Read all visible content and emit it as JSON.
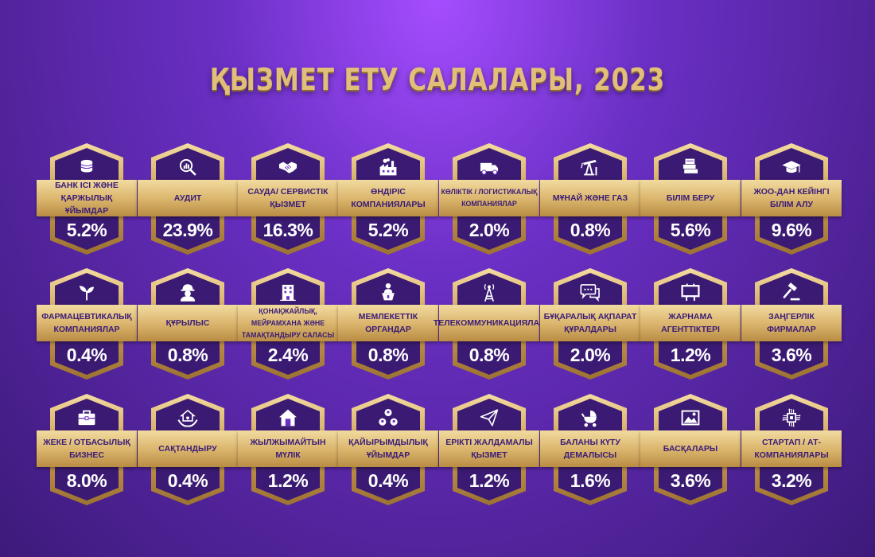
{
  "title": "ҚЫЗМЕТ ЕТУ САЛАЛАРЫ, 2023",
  "cards": [
    {
      "label": "БАНК ІСІ ЖӘНЕ ҚАРЖЫЛЫҚ ҰЙЫМДАР",
      "value": "5.2%",
      "icon": "coins-icon"
    },
    {
      "label": "АУДИТ",
      "value": "23.9%",
      "icon": "magnifier-chart-icon"
    },
    {
      "label": "САУДА/ СЕРВИСТІК ҚЫЗМЕТ",
      "value": "16.3%",
      "icon": "handshake-icon"
    },
    {
      "label": "ӨНДІРІС КОМПАНИЯЛАРЫ",
      "value": "5.2%",
      "icon": "factory-icon"
    },
    {
      "label": "КӨЛІКТІК / ЛОГИСТИКАЛЫҚ КОМПАНИЯЛАР",
      "value": "2.0%",
      "icon": "truck-icon"
    },
    {
      "label": "МҰНАЙ ЖӘНЕ ГАЗ",
      "value": "0.8%",
      "icon": "oil-pump-icon"
    },
    {
      "label": "БІЛІМ БЕРУ",
      "value": "5.6%",
      "icon": "books-icon"
    },
    {
      "label": "ЖОО-ДАН КЕЙІНГІ БІЛІМ АЛУ",
      "value": "9.6%",
      "icon": "graduation-cap-icon"
    },
    {
      "label": "ФАРМАЦЕВТИКАЛЫҚ КОМПАНИЯЛАР",
      "value": "0.4%",
      "icon": "sprout-icon"
    },
    {
      "label": "ҚҰРЫЛЫС",
      "value": "0.8%",
      "icon": "builder-icon"
    },
    {
      "label": "ҚОНАҚЖАЙЛЫҚ, МЕЙРАМХАНА ЖӘНЕ ТАМАҚТАНДЫРУ САЛАСЫ",
      "value": "2.4%",
      "icon": "hotel-icon"
    },
    {
      "label": "МЕМЛЕКЕТТІК ОРГАНДАР",
      "value": "0.8%",
      "icon": "speaker-podium-icon"
    },
    {
      "label": "ТЕЛЕКОММУНИКАЦИЯЛАР",
      "value": "0.8%",
      "icon": "antenna-tower-icon"
    },
    {
      "label": "БҰҚАРАЛЫҚ АҚПАРАТ ҚҰРАЛДАРЫ",
      "value": "2.0%",
      "icon": "chat-bubbles-icon"
    },
    {
      "label": "ЖАРНАМА АГЕНТТІКТЕРІ",
      "value": "1.2%",
      "icon": "billboard-icon"
    },
    {
      "label": "ЗАҢГЕРЛІК ФИРМАЛАР",
      "value": "3.6%",
      "icon": "gavel-icon"
    },
    {
      "label": "ЖЕКЕ / ОТБАСЫЛЫҚ БИЗНЕС",
      "value": "8.0%",
      "icon": "briefcase-icon"
    },
    {
      "label": "САҚТАНДЫРУ",
      "value": "0.4%",
      "icon": "hands-house-icon"
    },
    {
      "label": "ЖЫЛЖЫМАЙТЫН МҮЛІК",
      "value": "1.2%",
      "icon": "house-icon"
    },
    {
      "label": "ҚАЙЫРЫМДЫЛЫҚ ҰЙЫМДАР",
      "value": "0.4%",
      "icon": "people-network-icon"
    },
    {
      "label": "ЕРІКТІ ЖАЛДАМАЛЫ ҚЫЗМЕТ",
      "value": "1.2%",
      "icon": "paper-plane-icon"
    },
    {
      "label": "БАЛАНЫ КҮТУ ДЕМАЛЫСЫ",
      "value": "1.6%",
      "icon": "baby-stroller-icon"
    },
    {
      "label": "БАСҚАЛАРЫ",
      "value": "3.6%",
      "icon": "picture-icon"
    },
    {
      "label": "СТАРТАП / АТ-КОМПАНИЯЛАРЫ",
      "value": "3.2%",
      "icon": "chip-icon"
    }
  ]
}
